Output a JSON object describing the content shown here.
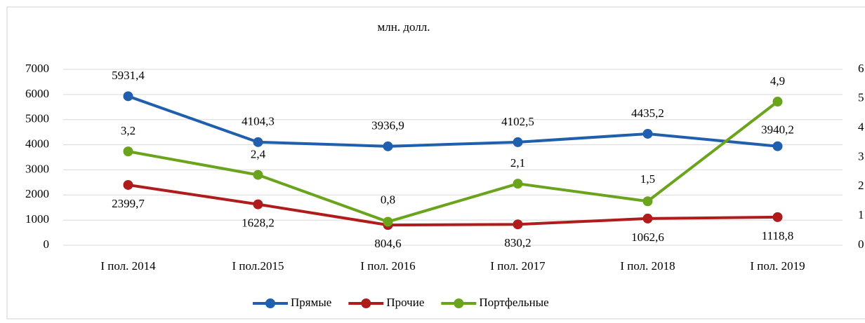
{
  "chart_data": {
    "type": "line",
    "title": "млн. долл.",
    "categories": [
      "I пол. 2014",
      "I пол.2015",
      "I пол. 2016",
      "I пол. 2017",
      "I пол. 2018",
      "I пол. 2019"
    ],
    "series": [
      {
        "name": "Прямые",
        "color": "#1f5fad",
        "values": [
          5931.4,
          4104.3,
          3936.9,
          4102.5,
          4435.2,
          3940.2
        ],
        "value_labels": [
          "5931,4",
          "4104,3",
          "3936,9",
          "4102,5",
          "4435,2",
          "3940,2"
        ]
      },
      {
        "name": "Прочие",
        "color": "#b01c1c",
        "values": [
          2399.7,
          1628.2,
          804.6,
          830.2,
          1062.6,
          1118.8
        ],
        "value_labels": [
          "2399,7",
          "1628,2",
          "804,6",
          "830,2",
          "1062,6",
          "1118,8"
        ]
      },
      {
        "name": "Портфельные",
        "color": "#6aa31c",
        "axis": "y2",
        "values": [
          3.2,
          2.4,
          0.8,
          2.1,
          1.5,
          4.9
        ],
        "value_labels": [
          "3,2",
          "2,4",
          "0,8",
          "2,1",
          "1,5",
          "4,9"
        ]
      }
    ],
    "ylim": [
      0,
      7000
    ],
    "yticks": [
      0,
      1000,
      2000,
      3000,
      4000,
      5000,
      6000,
      7000
    ],
    "y2lim": [
      0,
      6
    ],
    "y2ticks": [
      0,
      1,
      2,
      3,
      4,
      5,
      6
    ],
    "grid": true,
    "legend": "bottom"
  }
}
